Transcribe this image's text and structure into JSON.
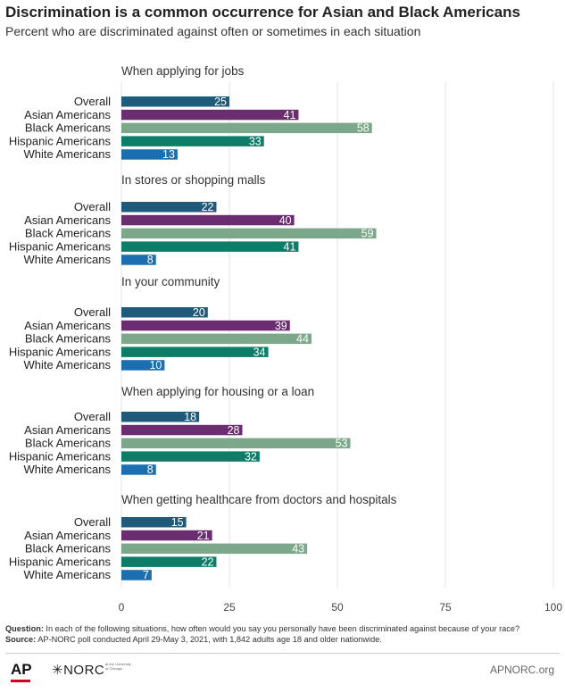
{
  "title": "Discrimination is a common occurrence for Asian and Black Americans",
  "subtitle": "Percent who are discriminated against often or sometimes in each situation",
  "chart_data": {
    "type": "bar",
    "orientation": "horizontal",
    "xlim": [
      0,
      100
    ],
    "x_ticks": [
      "0",
      "25",
      "50",
      "75",
      "100"
    ],
    "grid": true,
    "categories": [
      "Overall",
      "Asian Americans",
      "Black Americans",
      "Hispanic Americans",
      "White Americans"
    ],
    "colors": {
      "Overall": "#1f5a7a",
      "Asian Americans": "#6b2d6f",
      "Black Americans": "#7da78b",
      "Hispanic Americans": "#0e7d68",
      "White Americans": "#1b6fb0"
    },
    "groups": [
      {
        "label": "When applying for jobs",
        "values": [
          25,
          41,
          58,
          33,
          13
        ]
      },
      {
        "label": "In stores or shopping malls",
        "values": [
          22,
          40,
          59,
          41,
          8
        ]
      },
      {
        "label": "In your community",
        "values": [
          20,
          39,
          44,
          34,
          10
        ]
      },
      {
        "label": "When applying for housing or a loan",
        "values": [
          18,
          28,
          53,
          32,
          8
        ]
      },
      {
        "label": "When getting healthcare from doctors and hospitals",
        "values": [
          15,
          21,
          43,
          22,
          7
        ]
      }
    ]
  },
  "footnote": {
    "question_label": "Question:",
    "question_text": " In each of the following situations, how often would you say you personally have been discriminated against because of your race?",
    "source_label": "Source:",
    "source_text": " AP-NORC poll conducted April 29-May 3, 2021, with 1,842 adults age 18 and older nationwide."
  },
  "footer": {
    "ap_logo": "AP",
    "norc_logo": "✳NORC",
    "norc_tag": "at the University of Chicago",
    "site": "APNORC.org"
  }
}
